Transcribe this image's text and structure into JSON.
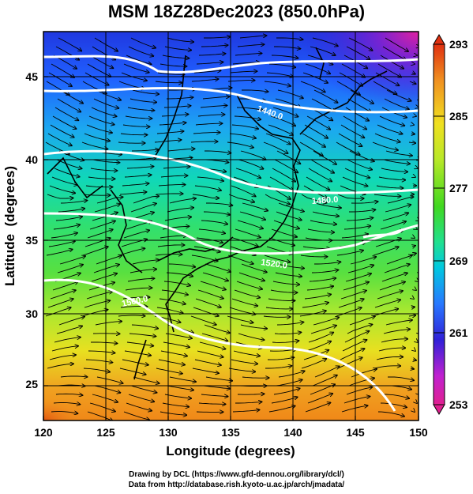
{
  "title": "MSM 18Z28Dec2023 (850.0hPa)",
  "xlabel": "Longitude (degrees)",
  "ylabel": "Latitude  (degrees)",
  "x_ticks": [
    "120",
    "125",
    "130",
    "135",
    "140",
    "145",
    "150"
  ],
  "y_ticks": [
    "25",
    "30",
    "35",
    "40",
    "45"
  ],
  "colorbar": {
    "labels": [
      "293",
      "285",
      "277",
      "269",
      "261",
      "253"
    ],
    "min": 253,
    "max": 293,
    "colors": [
      "#e02090",
      "#c020d0",
      "#3020d8",
      "#2878ff",
      "#00c8e0",
      "#20e090",
      "#40d820",
      "#b8e828",
      "#f0e020",
      "#f09020",
      "#e03010"
    ]
  },
  "contour_labels": [
    "1440.0",
    "1480.0",
    "1520.0",
    "1560.0"
  ],
  "credits": {
    "line1": "Drawing by DCL (https://www.gfd-dennou.org/library/dcl/)",
    "line2": "Data from http://database.rish.kyoto-u.ac.jp/arch/jmadata/"
  }
}
